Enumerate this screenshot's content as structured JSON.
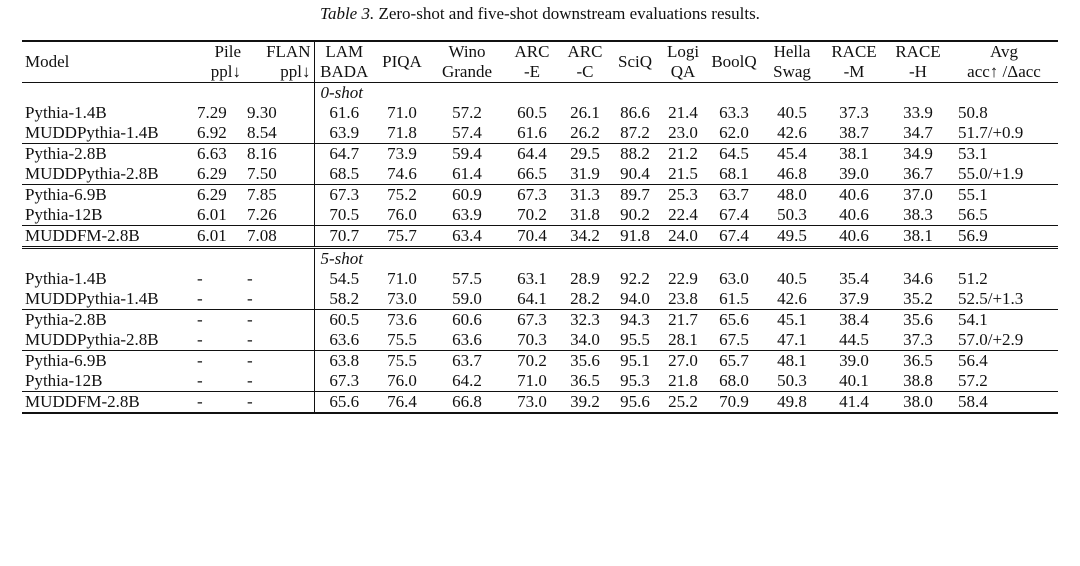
{
  "caption": {
    "label": "Table 3.",
    "text": "Zero-shot and five-shot downstream evaluations results."
  },
  "headers": {
    "model": "Model",
    "pile": [
      "Pile",
      "ppl↓"
    ],
    "flan": [
      "FLAN",
      "ppl↓"
    ],
    "lambada": [
      "LAM",
      "BADA"
    ],
    "piqa": [
      "PIQA"
    ],
    "wino": [
      "Wino",
      "Grande"
    ],
    "arce": [
      "ARC",
      "-E"
    ],
    "arcc": [
      "ARC",
      "-C"
    ],
    "sciq": [
      "SciQ"
    ],
    "logiqa": [
      "Logi",
      "QA"
    ],
    "boolq": [
      "BoolQ"
    ],
    "hellaswag": [
      "Hella",
      "Swag"
    ],
    "racem": [
      "RACE",
      "-M"
    ],
    "raceh": [
      "RACE",
      "-H"
    ],
    "avg": [
      "Avg",
      "acc↑ /Δacc"
    ]
  },
  "sections": [
    {
      "label": "0-shot",
      "groups": [
        [
          {
            "model": "Pythia-1.4B",
            "bold_model": false,
            "cells": [
              "7.29",
              "9.30",
              "61.6",
              "71.0",
              "57.2",
              "60.5",
              "26.1",
              "86.6",
              "21.4",
              "63.3",
              "40.5",
              "37.3",
              "33.9",
              "50.8"
            ],
            "bold": [
              false,
              false,
              false,
              false,
              false,
              false,
              false,
              false,
              false,
              true,
              false,
              false,
              false,
              false
            ]
          },
          {
            "model": "MUDDPythia-1.4B",
            "bold_model": true,
            "cells": [
              "6.92",
              "8.54",
              "63.9",
              "71.8",
              "57.4",
              "61.6",
              "26.2",
              "87.2",
              "23.0",
              "62.0",
              "42.6",
              "38.7",
              "34.7",
              "51.7"
            ],
            "avg_delta": "/+0.9",
            "bold": [
              true,
              true,
              true,
              true,
              true,
              true,
              true,
              true,
              true,
              false,
              true,
              true,
              true,
              true
            ]
          }
        ],
        [
          {
            "model": "Pythia-2.8B",
            "bold_model": false,
            "cells": [
              "6.63",
              "8.16",
              "64.7",
              "73.9",
              "59.4",
              "64.4",
              "29.5",
              "88.2",
              "21.2",
              "64.5",
              "45.4",
              "38.1",
              "34.9",
              "53.1"
            ],
            "bold": [
              false,
              false,
              false,
              false,
              false,
              false,
              false,
              false,
              false,
              false,
              false,
              false,
              false,
              false
            ]
          },
          {
            "model": "MUDDPythia-2.8B",
            "bold_model": true,
            "cells": [
              "6.29",
              "7.50",
              "68.5",
              "74.6",
              "61.4",
              "66.5",
              "31.9",
              "90.4",
              "21.5",
              "68.1",
              "46.8",
              "39.0",
              "36.7",
              "55.0"
            ],
            "avg_delta": "/+1.9",
            "bold": [
              true,
              true,
              true,
              true,
              true,
              true,
              true,
              true,
              true,
              true,
              true,
              true,
              true,
              true
            ]
          }
        ],
        [
          {
            "model": "Pythia-6.9B",
            "bold_model": false,
            "cells": [
              "6.29",
              "7.85",
              "67.3",
              "75.2",
              "60.9",
              "67.3",
              "31.3",
              "89.7",
              "25.3",
              "63.7",
              "48.0",
              "40.6",
              "37.0",
              "55.1"
            ],
            "bold": [
              false,
              false,
              false,
              false,
              false,
              false,
              false,
              false,
              false,
              false,
              false,
              false,
              false,
              false
            ]
          },
          {
            "model": "Pythia-12B",
            "bold_model": false,
            "cells": [
              "6.01",
              "7.26",
              "70.5",
              "76.0",
              "63.9",
              "70.2",
              "31.8",
              "90.2",
              "22.4",
              "67.4",
              "50.3",
              "40.6",
              "38.3",
              "56.5"
            ],
            "bold": [
              false,
              false,
              false,
              false,
              false,
              false,
              false,
              false,
              false,
              false,
              false,
              false,
              false,
              false
            ]
          }
        ],
        [
          {
            "model": "MUDDFM-2.8B",
            "bold_model": true,
            "cells": [
              "6.01",
              "7.08",
              "70.7",
              "75.7",
              "63.4",
              "70.4",
              "34.2",
              "91.8",
              "24.0",
              "67.4",
              "49.5",
              "40.6",
              "38.1",
              "56.9"
            ],
            "bold": [
              false,
              false,
              false,
              false,
              false,
              false,
              false,
              false,
              false,
              false,
              false,
              false,
              false,
              true
            ]
          }
        ]
      ]
    },
    {
      "label": "5-shot",
      "groups": [
        [
          {
            "model": "Pythia-1.4B",
            "bold_model": false,
            "cells": [
              "-",
              "-",
              "54.5",
              "71.0",
              "57.5",
              "63.1",
              "28.9",
              "92.2",
              "22.9",
              "63.0",
              "40.5",
              "35.4",
              "34.6",
              "51.2"
            ],
            "bold": [
              false,
              false,
              false,
              false,
              false,
              false,
              true,
              false,
              false,
              true,
              false,
              false,
              false,
              false
            ]
          },
          {
            "model": "MUDDPythia-1.4B",
            "bold_model": true,
            "cells": [
              "-",
              "-",
              "58.2",
              "73.0",
              "59.0",
              "64.1",
              "28.2",
              "94.0",
              "23.8",
              "61.5",
              "42.6",
              "37.9",
              "35.2",
              "52.5"
            ],
            "avg_delta": "/+1.3",
            "bold": [
              false,
              false,
              true,
              true,
              true,
              true,
              false,
              true,
              true,
              false,
              true,
              true,
              true,
              true
            ]
          }
        ],
        [
          {
            "model": "Pythia-2.8B",
            "bold_model": false,
            "cells": [
              "-",
              "-",
              "60.5",
              "73.6",
              "60.6",
              "67.3",
              "32.3",
              "94.3",
              "21.7",
              "65.6",
              "45.1",
              "38.4",
              "35.6",
              "54.1"
            ],
            "bold": [
              false,
              false,
              false,
              false,
              false,
              false,
              false,
              false,
              false,
              false,
              false,
              false,
              false,
              false
            ]
          },
          {
            "model": "MUDDPythia-2.8B",
            "bold_model": true,
            "cells": [
              "-",
              "-",
              "63.6",
              "75.5",
              "63.6",
              "70.3",
              "34.0",
              "95.5",
              "28.1",
              "67.5",
              "47.1",
              "44.5",
              "37.3",
              "57.0"
            ],
            "avg_delta": "/+2.9",
            "bold": [
              false,
              false,
              true,
              true,
              true,
              true,
              true,
              true,
              true,
              true,
              true,
              true,
              true,
              true
            ]
          }
        ],
        [
          {
            "model": "Pythia-6.9B",
            "bold_model": false,
            "cells": [
              "-",
              "-",
              "63.8",
              "75.5",
              "63.7",
              "70.2",
              "35.6",
              "95.1",
              "27.0",
              "65.7",
              "48.1",
              "39.0",
              "36.5",
              "56.4"
            ],
            "bold": [
              false,
              false,
              false,
              false,
              false,
              false,
              false,
              false,
              false,
              false,
              false,
              false,
              false,
              false
            ]
          },
          {
            "model": "Pythia-12B",
            "bold_model": false,
            "cells": [
              "-",
              "-",
              "67.3",
              "76.0",
              "64.2",
              "71.0",
              "36.5",
              "95.3",
              "21.8",
              "68.0",
              "50.3",
              "40.1",
              "38.8",
              "57.2"
            ],
            "bold": [
              false,
              false,
              false,
              false,
              false,
              false,
              false,
              false,
              false,
              false,
              false,
              false,
              false,
              false
            ]
          }
        ],
        [
          {
            "model": "MUDDFM-2.8B",
            "bold_model": true,
            "cells": [
              "-",
              "-",
              "65.6",
              "76.4",
              "66.8",
              "73.0",
              "39.2",
              "95.6",
              "25.2",
              "70.9",
              "49.8",
              "41.4",
              "38.0",
              "58.4"
            ],
            "bold": [
              false,
              false,
              false,
              false,
              false,
              false,
              false,
              false,
              false,
              false,
              false,
              false,
              false,
              true
            ]
          }
        ]
      ]
    }
  ]
}
